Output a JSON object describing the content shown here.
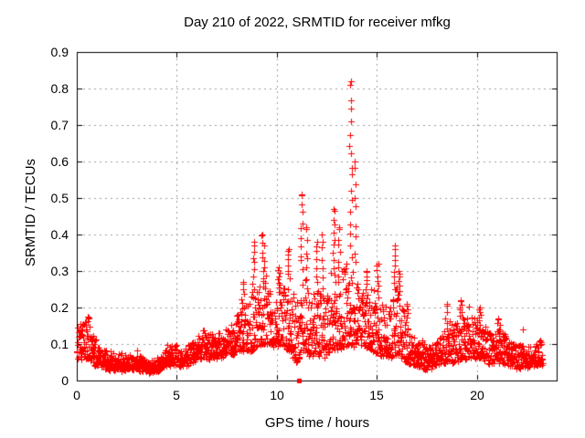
{
  "chart_data": {
    "type": "scatter",
    "title": "Day 210 of 2022, SRMTID for receiver mfkg",
    "xlabel": "GPS time / hours",
    "ylabel": "SRMTID / TECUs",
    "xlim": [
      0,
      24
    ],
    "ylim": [
      0,
      0.9
    ],
    "x_tick_values": [
      0,
      5,
      10,
      15,
      20
    ],
    "x_tick_labels": [
      "0",
      "5",
      "10",
      "15",
      "20"
    ],
    "y_tick_values": [
      0,
      0.1,
      0.2,
      0.3,
      0.4,
      0.5,
      0.6,
      0.7,
      0.8,
      0.9
    ],
    "y_tick_labels": [
      "0",
      "0.1",
      "0.2",
      "0.3",
      "0.4",
      "0.5",
      "0.6",
      "0.7",
      "0.8",
      "0.9"
    ],
    "grid": {
      "show": true,
      "color": "#9e9e9e",
      "dash": [
        2,
        4
      ]
    },
    "frame_color": "#000000",
    "text_color": "#000000",
    "legend": "none",
    "marker": {
      "shape": "plus",
      "color": "#ff0000",
      "size": 7
    },
    "special_square": {
      "x": 11.13,
      "y": 0,
      "size": 5,
      "color": "#ff0000"
    },
    "data_extent_hours": [
      0.0,
      23.3
    ],
    "points_per_hour": 95,
    "random_seed": 20220729,
    "band_envelope": [
      [
        0.0,
        0.05,
        0.15
      ],
      [
        0.3,
        0.05,
        0.16
      ],
      [
        0.6,
        0.06,
        0.17
      ],
      [
        0.9,
        0.04,
        0.12
      ],
      [
        1.2,
        0.035,
        0.09
      ],
      [
        1.6,
        0.03,
        0.08
      ],
      [
        2.0,
        0.03,
        0.075
      ],
      [
        2.5,
        0.03,
        0.07
      ],
      [
        3.0,
        0.03,
        0.075
      ],
      [
        3.4,
        0.025,
        0.06
      ],
      [
        3.8,
        0.02,
        0.055
      ],
      [
        4.2,
        0.03,
        0.07
      ],
      [
        4.6,
        0.04,
        0.09
      ],
      [
        5.0,
        0.04,
        0.1
      ],
      [
        5.4,
        0.04,
        0.09
      ],
      [
        5.8,
        0.05,
        0.11
      ],
      [
        6.2,
        0.06,
        0.14
      ],
      [
        6.6,
        0.06,
        0.13
      ],
      [
        7.0,
        0.06,
        0.12
      ],
      [
        7.4,
        0.07,
        0.14
      ],
      [
        7.8,
        0.07,
        0.16
      ],
      [
        8.2,
        0.08,
        0.2
      ],
      [
        8.6,
        0.08,
        0.22
      ],
      [
        9.0,
        0.09,
        0.25
      ],
      [
        9.4,
        0.1,
        0.28
      ],
      [
        9.8,
        0.09,
        0.22
      ],
      [
        10.2,
        0.1,
        0.26
      ],
      [
        10.6,
        0.08,
        0.27
      ],
      [
        11.0,
        0.05,
        0.22
      ],
      [
        11.3,
        0.08,
        0.3
      ],
      [
        11.7,
        0.06,
        0.22
      ],
      [
        12.0,
        0.07,
        0.26
      ],
      [
        12.4,
        0.06,
        0.22
      ],
      [
        12.8,
        0.08,
        0.28
      ],
      [
        13.2,
        0.09,
        0.3
      ],
      [
        13.6,
        0.1,
        0.33
      ],
      [
        14.0,
        0.09,
        0.28
      ],
      [
        14.4,
        0.09,
        0.24
      ],
      [
        14.8,
        0.08,
        0.26
      ],
      [
        15.2,
        0.07,
        0.22
      ],
      [
        15.6,
        0.06,
        0.19
      ],
      [
        16.0,
        0.07,
        0.26
      ],
      [
        16.4,
        0.05,
        0.18
      ],
      [
        16.8,
        0.04,
        0.13
      ],
      [
        17.2,
        0.035,
        0.11
      ],
      [
        17.6,
        0.03,
        0.1
      ],
      [
        18.0,
        0.04,
        0.11
      ],
      [
        18.4,
        0.05,
        0.14
      ],
      [
        18.8,
        0.05,
        0.16
      ],
      [
        19.2,
        0.06,
        0.18
      ],
      [
        19.6,
        0.06,
        0.18
      ],
      [
        20.0,
        0.06,
        0.17
      ],
      [
        20.4,
        0.05,
        0.14
      ],
      [
        20.8,
        0.04,
        0.13
      ],
      [
        21.2,
        0.05,
        0.14
      ],
      [
        21.6,
        0.04,
        0.11
      ],
      [
        22.0,
        0.035,
        0.1
      ],
      [
        22.4,
        0.035,
        0.09
      ],
      [
        22.8,
        0.04,
        0.1
      ],
      [
        23.3,
        0.04,
        0.11
      ]
    ],
    "spikes": [
      [
        0.55,
        0.175,
        4
      ],
      [
        8.3,
        0.27,
        5
      ],
      [
        8.85,
        0.38,
        8
      ],
      [
        9.3,
        0.4,
        9
      ],
      [
        10.1,
        0.31,
        6
      ],
      [
        10.6,
        0.36,
        7
      ],
      [
        11.25,
        0.51,
        10
      ],
      [
        11.5,
        0.42,
        6
      ],
      [
        12.0,
        0.38,
        6
      ],
      [
        12.25,
        0.4,
        6
      ],
      [
        12.85,
        0.47,
        10
      ],
      [
        13.1,
        0.42,
        6
      ],
      [
        13.7,
        0.82,
        16
      ],
      [
        13.9,
        0.6,
        8
      ],
      [
        14.5,
        0.3,
        5
      ],
      [
        15.05,
        0.32,
        6
      ],
      [
        15.9,
        0.37,
        8
      ],
      [
        16.1,
        0.3,
        5
      ],
      [
        16.5,
        0.21,
        4
      ],
      [
        18.5,
        0.21,
        4
      ],
      [
        19.2,
        0.22,
        5
      ],
      [
        20.15,
        0.2,
        5
      ],
      [
        21.1,
        0.17,
        4
      ]
    ],
    "outliers": [
      [
        22.3,
        0.14
      ]
    ]
  }
}
